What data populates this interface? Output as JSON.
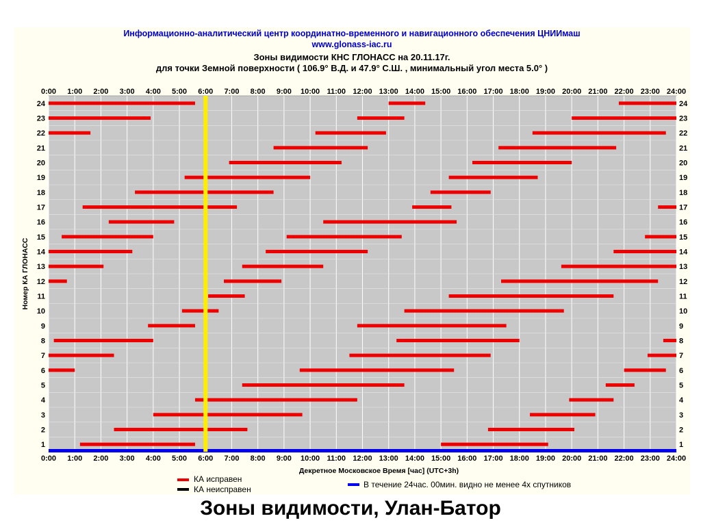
{
  "header": {
    "line1": "Информационно-аналитический центр координатно-временного и навигационного обеспечения ЦНИИмаш",
    "line2": "www.glonass-iac.ru",
    "line3": "Зоны видимости КНС ГЛОНАСС на 20.11.17г.",
    "line4": "для точки Земной поверхности ( 106.9°  В.Д. и 47.9°  С.Ш. ,  минимальный угол места 5.0° )"
  },
  "caption": "Зоны видимости, Улан-Батор",
  "legend": {
    "ok_label": "КА исправен",
    "bad_label": "КА неисправен",
    "cover_label": "В течение 24час. 00мин. видно не менее 4х спутников"
  },
  "chart_data": {
    "type": "timeline",
    "xlabel": "Декретное Московское Время [час] (UTC+3h)",
    "ylabel": "Номер КА ГЛОНАСС",
    "xlim": [
      0,
      24
    ],
    "ylim": [
      1,
      24
    ],
    "x_ticks": [
      "0:00",
      "1:00",
      "2:00",
      "3:00",
      "4:00",
      "5:00",
      "6:00",
      "7:00",
      "8:00",
      "9:00",
      "10:00",
      "11:00",
      "12:00",
      "13:00",
      "14:00",
      "15:00",
      "16:00",
      "17:00",
      "18:00",
      "19:00",
      "20:00",
      "21:00",
      "22:00",
      "23:00",
      "24:00"
    ],
    "y_ticks": [
      "1",
      "2",
      "3",
      "4",
      "5",
      "6",
      "7",
      "8",
      "9",
      "10",
      "11",
      "12",
      "13",
      "14",
      "15",
      "16",
      "17",
      "18",
      "19",
      "20",
      "21",
      "22",
      "23",
      "24"
    ],
    "grid": true,
    "current_time_marker": 6.0,
    "colors": {
      "ok": "#ee0000",
      "bad": "#000000",
      "coverage": "#0000ee",
      "marker": "#ffee00",
      "plot_bg": "#c8c8c8"
    },
    "coverage_interval": [
      0,
      24
    ],
    "series": [
      {
        "satellite": "24",
        "status": "ok",
        "intervals": [
          [
            0.0,
            5.6
          ],
          [
            13.0,
            14.4
          ],
          [
            21.8,
            24.0
          ]
        ]
      },
      {
        "satellite": "23",
        "status": "ok",
        "intervals": [
          [
            0.0,
            3.9
          ],
          [
            11.8,
            13.6
          ],
          [
            20.0,
            24.0
          ]
        ]
      },
      {
        "satellite": "22",
        "status": "ok",
        "intervals": [
          [
            0.0,
            1.6
          ],
          [
            10.2,
            12.9
          ],
          [
            18.5,
            23.6
          ]
        ]
      },
      {
        "satellite": "21",
        "status": "ok",
        "intervals": [
          [
            8.6,
            12.2
          ],
          [
            17.2,
            21.7
          ]
        ]
      },
      {
        "satellite": "20",
        "status": "ok",
        "intervals": [
          [
            6.9,
            11.2
          ],
          [
            16.2,
            20.0
          ]
        ]
      },
      {
        "satellite": "19",
        "status": "ok",
        "intervals": [
          [
            5.2,
            10.0
          ],
          [
            15.3,
            18.7
          ]
        ]
      },
      {
        "satellite": "18",
        "status": "ok",
        "intervals": [
          [
            3.3,
            8.6
          ],
          [
            14.6,
            16.9
          ]
        ]
      },
      {
        "satellite": "17",
        "status": "ok",
        "intervals": [
          [
            1.3,
            7.2
          ],
          [
            13.9,
            15.4
          ],
          [
            23.3,
            24.0
          ]
        ]
      },
      {
        "satellite": "16",
        "status": "ok",
        "intervals": [
          [
            2.3,
            4.8
          ],
          [
            10.5,
            15.6
          ]
        ]
      },
      {
        "satellite": "15",
        "status": "ok",
        "intervals": [
          [
            0.5,
            4.0
          ],
          [
            9.1,
            13.5
          ],
          [
            22.8,
            24.0
          ]
        ]
      },
      {
        "satellite": "14",
        "status": "ok",
        "intervals": [
          [
            0.0,
            3.2
          ],
          [
            8.3,
            12.2
          ],
          [
            21.6,
            24.0
          ]
        ]
      },
      {
        "satellite": "13",
        "status": "ok",
        "intervals": [
          [
            0.0,
            2.1
          ],
          [
            7.4,
            10.5
          ],
          [
            19.6,
            24.0
          ]
        ]
      },
      {
        "satellite": "12",
        "status": "ok",
        "intervals": [
          [
            0.0,
            0.7
          ],
          [
            6.7,
            8.9
          ],
          [
            17.3,
            23.3
          ]
        ]
      },
      {
        "satellite": "11",
        "status": "ok",
        "intervals": [
          [
            6.1,
            7.5
          ],
          [
            15.3,
            21.6
          ]
        ]
      },
      {
        "satellite": "10",
        "status": "ok",
        "intervals": [
          [
            5.1,
            6.5
          ],
          [
            13.6,
            19.7
          ]
        ]
      },
      {
        "satellite": "9",
        "status": "ok",
        "intervals": [
          [
            3.8,
            5.6
          ],
          [
            11.8,
            17.5
          ]
        ]
      },
      {
        "satellite": "8",
        "status": "ok",
        "intervals": [
          [
            0.2,
            4.0
          ],
          [
            13.3,
            18.0
          ],
          [
            23.5,
            24.0
          ]
        ]
      },
      {
        "satellite": "7",
        "status": "ok",
        "intervals": [
          [
            0.0,
            2.5
          ],
          [
            11.5,
            16.9
          ],
          [
            22.9,
            24.0
          ]
        ]
      },
      {
        "satellite": "6",
        "status": "ok",
        "intervals": [
          [
            0.0,
            1.0
          ],
          [
            9.6,
            15.5
          ],
          [
            22.0,
            23.6
          ]
        ]
      },
      {
        "satellite": "5",
        "status": "ok",
        "intervals": [
          [
            7.4,
            13.6
          ],
          [
            21.3,
            22.4
          ]
        ]
      },
      {
        "satellite": "4",
        "status": "ok",
        "intervals": [
          [
            5.6,
            11.8
          ],
          [
            19.9,
            21.6
          ]
        ]
      },
      {
        "satellite": "3",
        "status": "ok",
        "intervals": [
          [
            4.0,
            9.7
          ],
          [
            18.4,
            20.9
          ]
        ]
      },
      {
        "satellite": "2",
        "status": "ok",
        "intervals": [
          [
            2.5,
            7.6
          ],
          [
            16.8,
            20.1
          ]
        ]
      },
      {
        "satellite": "1",
        "status": "ok",
        "intervals": [
          [
            1.2,
            5.6
          ],
          [
            15.0,
            19.1
          ]
        ]
      }
    ]
  }
}
